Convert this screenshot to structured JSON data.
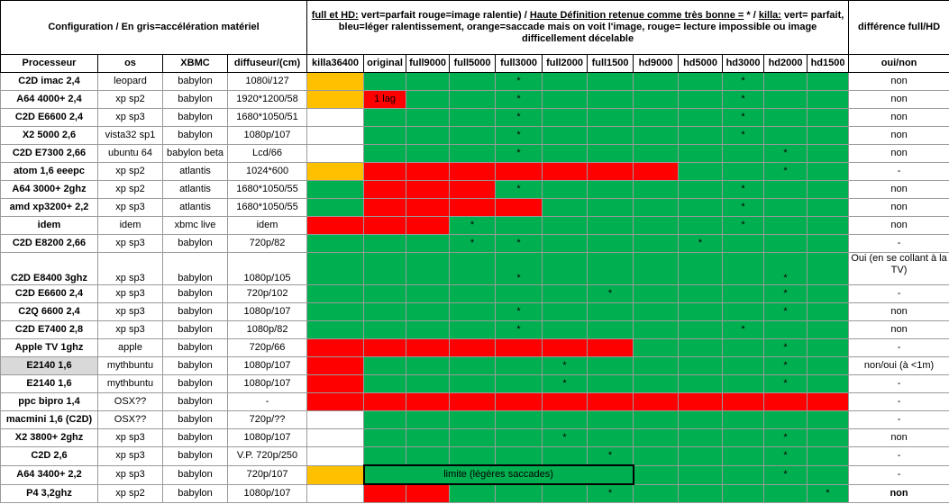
{
  "header": {
    "config": "Configuration / En gris=accélération matériel",
    "note": [
      "full et HD:",
      " vert=parfait rouge=image ralentie) / ",
      "Haute Définition retenue comme très bonne =",
      " * / ",
      "killa:",
      " vert= parfait, bleu=léger ralentissement, orange=saccade mais on voit l'image, rouge= lecture impossible ou image difficellement décelable"
    ],
    "difference": "différence full/HD"
  },
  "table": {
    "columns": [
      "Processeur",
      "os",
      "XBMC",
      "diffuseur/(cm)",
      "killa36400",
      "original",
      "full9000",
      "full5000",
      "full3000",
      "full2000",
      "full1500",
      "hd9000",
      "hd5000",
      "hd3000",
      "hd2000",
      "hd1500",
      "oui/non"
    ],
    "rows": [
      {
        "cells": [
          "C2D imac 2,4",
          "leopard",
          "babylon",
          "1080i/127"
        ],
        "results": [
          null,
          null,
          null,
          null,
          "*",
          null,
          null,
          null,
          null,
          "*",
          null,
          null
        ],
        "diff": "non"
      },
      {
        "cells": [
          "A64 4000+ 2,4",
          "xp sp2",
          "babylon",
          "1920*1200/58"
        ],
        "results": [
          null,
          "1 lag",
          null,
          null,
          "*",
          null,
          null,
          null,
          null,
          "*",
          null,
          null
        ],
        "diff": "non"
      },
      {
        "cells": [
          "C2D E6600 2,4",
          "xp sp3",
          "babylon",
          "1680*1050/51"
        ],
        "results": [
          null,
          null,
          null,
          null,
          "*",
          null,
          null,
          null,
          null,
          "*",
          null,
          null
        ],
        "diff": "non"
      },
      {
        "cells": [
          "X2 5000 2,6",
          "vista32 sp1",
          "babylon",
          "1080p/107"
        ],
        "results": [
          null,
          null,
          null,
          null,
          "*",
          null,
          null,
          null,
          null,
          "*",
          null,
          null
        ],
        "diff": "non"
      },
      {
        "cells": [
          "C2D E7300 2,66",
          "ubuntu 64",
          "babylon beta",
          "Lcd/66"
        ],
        "results": [
          null,
          null,
          null,
          null,
          "*",
          null,
          null,
          null,
          null,
          null,
          "*",
          null
        ],
        "diff": "non"
      },
      {
        "cells": [
          "atom 1,6 eeepc",
          "xp sp2",
          "atlantis",
          "1024*600"
        ],
        "results": [
          null,
          null,
          null,
          null,
          null,
          null,
          null,
          null,
          null,
          null,
          "*",
          null
        ],
        "diff": "-"
      },
      {
        "cells": [
          "A64 3000+ 2ghz",
          "xp sp2",
          "atlantis",
          "1680*1050/55"
        ],
        "results": [
          null,
          null,
          null,
          null,
          "*",
          null,
          null,
          null,
          null,
          "*",
          null,
          null
        ],
        "diff": "non"
      },
      {
        "cells": [
          "amd xp3200+ 2,2",
          "xp sp3",
          "atlantis",
          "1680*1050/55"
        ],
        "results": [
          null,
          null,
          null,
          null,
          null,
          null,
          null,
          null,
          null,
          "*",
          null,
          null
        ],
        "diff": "non"
      },
      {
        "cells": [
          "idem",
          "idem",
          "xbmc live",
          "idem"
        ],
        "results": [
          null,
          null,
          null,
          "*",
          null,
          null,
          null,
          null,
          null,
          "*",
          null,
          null
        ],
        "diff": "non"
      },
      {
        "cells": [
          "C2D E8200 2,66",
          "xp sp3",
          "babylon",
          "720p/82"
        ],
        "results": [
          null,
          null,
          null,
          "*",
          "*",
          null,
          null,
          null,
          "*",
          null,
          null,
          null
        ],
        "diff": "-"
      },
      {
        "cells": [
          "C2D E8400 3ghz",
          "xp sp3",
          "babylon",
          "1080p/105"
        ],
        "results": [
          null,
          null,
          null,
          null,
          "*",
          null,
          null,
          null,
          null,
          null,
          "*",
          null
        ],
        "diff": "Oui (en se collant à la TV)"
      },
      {
        "cells": [
          "C2D E6600 2,4",
          "xp sp3",
          "babylon",
          "720p/102"
        ],
        "results": [
          null,
          null,
          null,
          null,
          null,
          null,
          "*",
          null,
          null,
          null,
          "*",
          null
        ],
        "diff": "-"
      },
      {
        "cells": [
          "C2Q 6600 2,4",
          "xp sp3",
          "babylon",
          "1080p/107"
        ],
        "results": [
          null,
          null,
          null,
          null,
          "*",
          null,
          null,
          null,
          null,
          null,
          "*",
          null
        ],
        "diff": "non"
      },
      {
        "cells": [
          "C2D E7400 2,8",
          "xp sp3",
          "babylon",
          "1080p/82"
        ],
        "results": [
          null,
          null,
          null,
          null,
          "*",
          null,
          null,
          null,
          null,
          "*",
          null,
          null
        ],
        "diff": "non"
      },
      {
        "cells": [
          "Apple TV 1ghz",
          "apple",
          "babylon",
          "720p/66"
        ],
        "results": [
          null,
          null,
          null,
          null,
          null,
          null,
          null,
          null,
          null,
          null,
          "*",
          null
        ],
        "diff": "-"
      },
      {
        "cells": [
          "E2140 1,6",
          "mythbuntu",
          "babylon",
          "1080p/107"
        ],
        "results": [
          null,
          null,
          null,
          null,
          null,
          "*",
          null,
          null,
          null,
          null,
          "*",
          null
        ],
        "diff": "non/oui (à <1m)"
      },
      {
        "cells": [
          "E2140 1,6",
          "mythbuntu",
          "babylon",
          "1080p/107"
        ],
        "results": [
          null,
          null,
          null,
          null,
          null,
          "*",
          null,
          null,
          null,
          null,
          "*",
          null
        ],
        "diff": "-"
      },
      {
        "cells": [
          "ppc bipro 1,4",
          "OSX??",
          "babylon",
          "-"
        ],
        "results": [
          null,
          null,
          null,
          null,
          null,
          null,
          null,
          null,
          null,
          null,
          null,
          null
        ],
        "diff": "-"
      },
      {
        "cells": [
          "macmini 1,6 (C2D)",
          "OSX??",
          "babylon",
          "720p/??"
        ],
        "results": [
          null,
          null,
          null,
          null,
          null,
          null,
          null,
          null,
          null,
          null,
          null,
          null
        ],
        "diff": "-"
      },
      {
        "cells": [
          "X2 3800+ 2ghz",
          "xp sp3",
          "babylon",
          "1080p/107"
        ],
        "results": [
          null,
          null,
          null,
          null,
          null,
          "*",
          null,
          null,
          null,
          null,
          "*",
          null
        ],
        "diff": "non"
      },
      {
        "cells": [
          "C2D 2,6",
          "xp sp3",
          "babylon",
          "V.P. 720p/250"
        ],
        "results": [
          null,
          null,
          null,
          null,
          null,
          null,
          "*",
          null,
          null,
          null,
          "*",
          null
        ],
        "diff": "-"
      },
      {
        "cells": [
          "A64 3400+ 2,2",
          "xp sp3",
          "babylon",
          "720p/107"
        ],
        "results": [
          null,
          "limite (légères saccades)",
          null,
          null,
          null,
          null,
          null,
          null,
          null,
          null,
          "*",
          null
        ],
        "diff": "-"
      },
      {
        "cells": [
          "P4 3,2ghz",
          "xp sp2",
          "babylon",
          "1080p/107"
        ],
        "results": [
          null,
          null,
          null,
          null,
          null,
          null,
          "*",
          null,
          null,
          null,
          null,
          "*"
        ],
        "diff": "non"
      }
    ]
  }
}
